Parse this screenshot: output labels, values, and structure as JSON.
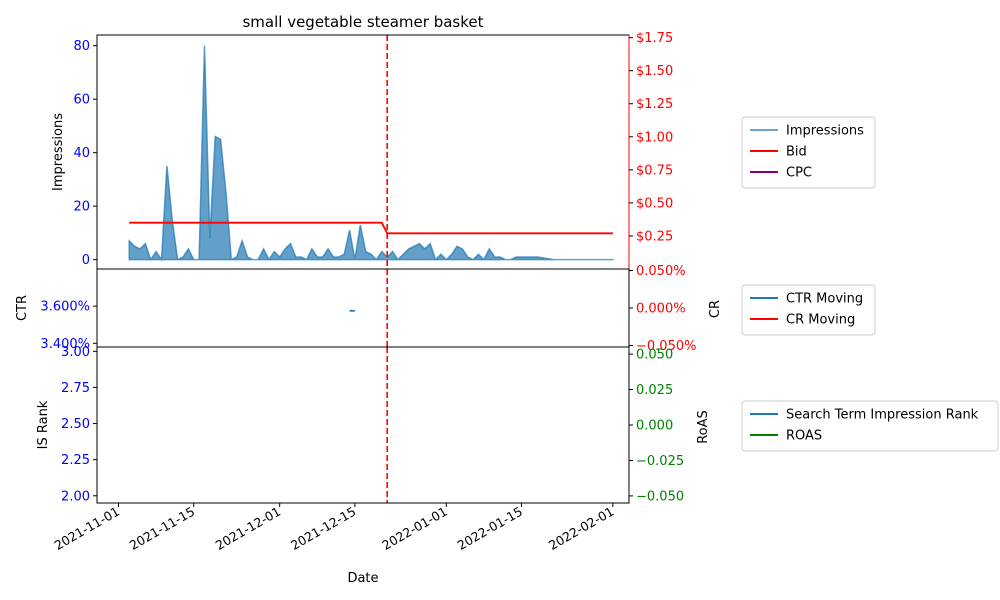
{
  "chart_data": {
    "type": "area",
    "title": "small vegetable steamer basket",
    "xlabel": "Date",
    "x_ticks": [
      "2021-11-01",
      "2021-11-15",
      "2021-12-01",
      "2021-12-15",
      "2022-01-01",
      "2022-01-15",
      "2022-02-01"
    ],
    "event_line_date": "2021-12-21",
    "panels": [
      {
        "name": "impressions-bid",
        "left_axis": {
          "label": "Impressions",
          "ticks": [
            0,
            20,
            40,
            60,
            80
          ],
          "range": [
            -3.5,
            84
          ],
          "color": "#0000ff"
        },
        "right_axis": {
          "label": "",
          "ticks": [
            "$0.25",
            "$1.75",
            "$1.50",
            "$1.25",
            "$1.00",
            "$0.75",
            "$0.50"
          ],
          "tick_values": [
            0.25,
            1.75,
            1.5,
            1.25,
            1.0,
            0.75,
            0.5
          ],
          "range": [
            0.0,
            1.77
          ],
          "color": "#ff0000"
        },
        "legend": [
          "Impressions",
          "Bid",
          "CPC"
        ],
        "series": [
          {
            "name": "Impressions",
            "color": "#1f77b4",
            "x": [
              "2021-11-03",
              "2021-11-04",
              "2021-11-05",
              "2021-11-06",
              "2021-11-07",
              "2021-11-08",
              "2021-11-09",
              "2021-11-10",
              "2021-11-11",
              "2021-11-12",
              "2021-11-13",
              "2021-11-14",
              "2021-11-15",
              "2021-11-16",
              "2021-11-17",
              "2021-11-18",
              "2021-11-19",
              "2021-11-20",
              "2021-11-21",
              "2021-11-22",
              "2021-11-23",
              "2021-11-24",
              "2021-11-25",
              "2021-11-26",
              "2021-11-27",
              "2021-11-28",
              "2021-11-29",
              "2021-11-30",
              "2021-12-01",
              "2021-12-02",
              "2021-12-03",
              "2021-12-04",
              "2021-12-05",
              "2021-12-06",
              "2021-12-07",
              "2021-12-08",
              "2021-12-09",
              "2021-12-10",
              "2021-12-11",
              "2021-12-12",
              "2021-12-13",
              "2021-12-14",
              "2021-12-15",
              "2021-12-16",
              "2021-12-17",
              "2021-12-18",
              "2021-12-19",
              "2021-12-20",
              "2021-12-21",
              "2021-12-22",
              "2021-12-23",
              "2021-12-24",
              "2021-12-25",
              "2021-12-26",
              "2021-12-27",
              "2021-12-28",
              "2021-12-29",
              "2021-12-30",
              "2021-12-31",
              "2022-01-01",
              "2022-01-02",
              "2022-01-03",
              "2022-01-04",
              "2022-01-05",
              "2022-01-06",
              "2022-01-07",
              "2022-01-08",
              "2022-01-09",
              "2022-01-10",
              "2022-01-11",
              "2022-01-12",
              "2022-01-13",
              "2022-01-14",
              "2022-01-16",
              "2022-01-18",
              "2022-01-21",
              "2022-01-26",
              "2022-02-01"
            ],
            "values": [
              7,
              5,
              4,
              6,
              0,
              3,
              0,
              35,
              15,
              0,
              1,
              4,
              0,
              0,
              80,
              8,
              46,
              45,
              25,
              0,
              1,
              7,
              1,
              0,
              0,
              4,
              0,
              3,
              1,
              4,
              6,
              1,
              1,
              0,
              4,
              1,
              1,
              4,
              1,
              1,
              2,
              11,
              0,
              13,
              3,
              2,
              0,
              3,
              1,
              3,
              0,
              2,
              4,
              5,
              6,
              4,
              6,
              0,
              2,
              0,
              2,
              5,
              4,
              1,
              0,
              2,
              0,
              4,
              1,
              1,
              0,
              0,
              1,
              1,
              1,
              0,
              0,
              0
            ]
          },
          {
            "name": "Bid",
            "color": "#ff0000",
            "x": [
              "2021-11-03",
              "2021-12-20",
              "2021-12-21",
              "2022-02-01"
            ],
            "values": [
              0.35,
              0.35,
              0.27,
              0.27
            ]
          }
        ]
      },
      {
        "name": "ctr-cr",
        "left_axis": {
          "label": "CTR",
          "ticks": [
            "3.600%",
            "3.400%"
          ],
          "tick_values": [
            3.6,
            3.4
          ],
          "range": [
            3.38,
            3.8
          ],
          "color": "#0000ff"
        },
        "right_axis": {
          "label": "CR",
          "ticks": [
            "0.050%",
            "0.000%",
            "−0.050%"
          ],
          "tick_values": [
            0.05,
            0.0,
            -0.05
          ],
          "range": [
            -0.052,
            0.052
          ],
          "color": "#ff0000"
        },
        "legend": [
          "CTR Moving",
          "CR Moving"
        ],
        "series": [
          {
            "name": "CTR Moving",
            "color": "#1f77b4",
            "x": [
              "2021-12-14",
              "2021-12-15"
            ],
            "values": [
              3.575,
              3.575
            ]
          }
        ]
      },
      {
        "name": "rank-roas",
        "left_axis": {
          "label": "IS Rank",
          "ticks": [
            3.0,
            2.75,
            2.5,
            2.25,
            2.0
          ],
          "range": [
            1.95,
            3.03
          ],
          "color": "#0000ff"
        },
        "right_axis": {
          "label": "RoAS",
          "ticks": [
            "0.050",
            "0.025",
            "0.000",
            "−0.025",
            "−0.050"
          ],
          "tick_values": [
            0.05,
            0.025,
            0.0,
            -0.025,
            -0.05
          ],
          "range": [
            -0.055,
            0.055
          ],
          "color": "#008000"
        },
        "legend": [
          "Search Term Impression Rank",
          "ROAS"
        ],
        "series": []
      }
    ],
    "legend_colors": {
      "Impressions": "#6aa6d0",
      "Bid": "#ff0000",
      "CPC": "#800080",
      "CTR Moving": "#1f77b4",
      "CR Moving": "#ff0000",
      "Search Term Impression Rank": "#1f77b4",
      "ROAS": "#008000"
    }
  }
}
